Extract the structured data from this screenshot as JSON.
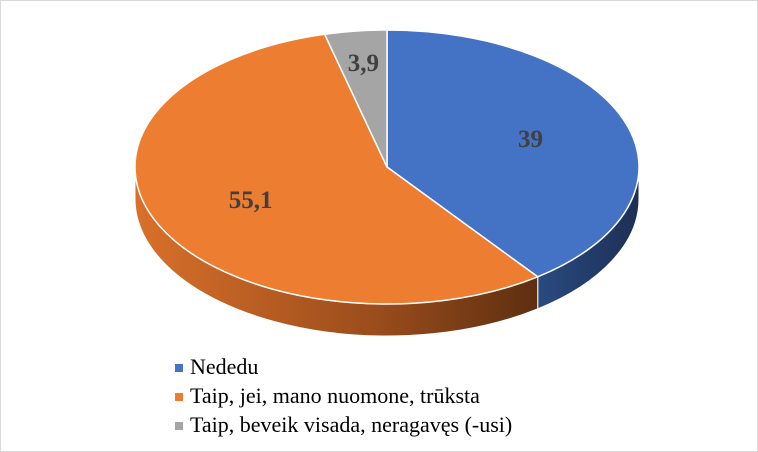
{
  "chart_data": {
    "type": "pie",
    "categories": [
      "Nededu",
      "Taip, jei, mano nuomone, trūksta",
      "Taip, beveik visada, neragavęs (-usi)"
    ],
    "values": [
      39,
      55.1,
      3.9
    ],
    "value_labels": [
      "39",
      "55,1",
      "3,9"
    ],
    "colors": [
      "#4472c4",
      "#ed7d31",
      "#a5a5a5"
    ],
    "legend": "bottom"
  }
}
